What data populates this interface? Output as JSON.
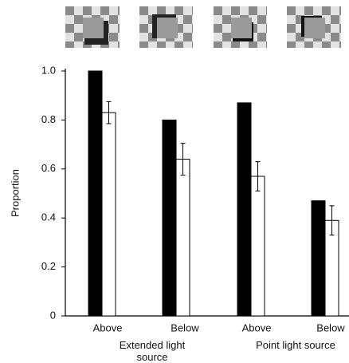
{
  "chart_data": {
    "type": "bar",
    "y_label": "Proportion",
    "categories": [
      "Above",
      "Below",
      "Above",
      "Below"
    ],
    "groups": [
      "Extended light source",
      "Point light source"
    ],
    "series": [
      {
        "color": "#000000",
        "values": [
          1.0,
          0.8,
          0.87,
          0.47
        ]
      },
      {
        "color": "#ffffff",
        "values": [
          0.83,
          0.64,
          0.57,
          0.39
        ],
        "errors": [
          0.045,
          0.065,
          0.06,
          0.06
        ]
      }
    ],
    "ylim": [
      0,
      1.0
    ],
    "yticks": [
      0,
      0.2,
      0.4,
      0.6,
      0.8,
      {
        "value": 1.0,
        "label": "1.0"
      }
    ]
  }
}
